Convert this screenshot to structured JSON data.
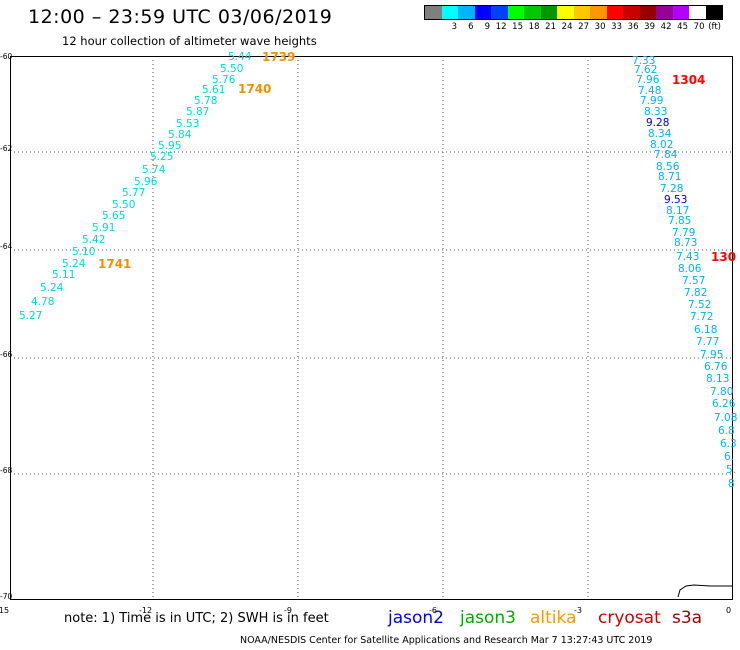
{
  "title": "12:00 – 23:59 UTC 03/06/2019",
  "subtitle": "12 hour collection of altimeter wave heights",
  "scale": {
    "colors": [
      "#7f7f7f",
      "#00ffff",
      "#00b4ff",
      "#0000ff",
      "#0041ff",
      "#00ff00",
      "#00c800",
      "#009600",
      "#ffff00",
      "#ffc800",
      "#ff9600",
      "#ff0000",
      "#c80000",
      "#960000",
      "#960096",
      "#b400ff",
      "#ffffff",
      "#000000"
    ],
    "labels": [
      "",
      "3",
      "6",
      "9",
      "12",
      "15",
      "18",
      "21",
      "24",
      "27",
      "30",
      "33",
      "36",
      "39",
      "42",
      "45",
      "70",
      "(ft)"
    ]
  },
  "map": {
    "lon_range": [
      -15,
      0
    ],
    "lat_range": [
      -70,
      -60
    ],
    "x_ticks": [
      "-15",
      "-12",
      "-9",
      "-6",
      "-3",
      "0"
    ],
    "y_ticks": [
      "-60",
      "-62",
      "-64",
      "-66",
      "-68",
      "-70"
    ],
    "gridlines": true
  },
  "track1": {
    "color": "#00d8d8",
    "values": [
      "5.44",
      "5.50",
      "5.76",
      "5.61",
      "5.78",
      "5.87",
      "5.53",
      "5.84",
      "5.95",
      "5.25",
      "5.74",
      "5.96",
      "5.77",
      "5.50",
      "5.65",
      "5.91",
      "5.42",
      "5.10",
      "5.24",
      "5.11",
      "5.24",
      "4.78",
      "5.27"
    ],
    "time_labels": [
      {
        "text": "1739",
        "color": "#f09000"
      },
      {
        "text": "1740",
        "color": "#f09000"
      },
      {
        "text": "1741",
        "color": "#f09000"
      }
    ]
  },
  "track2": {
    "color": "#00b4e8",
    "values": [
      {
        "v": "7.33",
        "c": "#00b4e8"
      },
      {
        "v": "7.62",
        "c": "#00b4e8"
      },
      {
        "v": "7.96",
        "c": "#00b4e8"
      },
      {
        "v": "7.48",
        "c": "#00b4e8"
      },
      {
        "v": "7.99",
        "c": "#00b4e8"
      },
      {
        "v": "8.33",
        "c": "#00b4e8"
      },
      {
        "v": "9.28",
        "c": "#0000cc"
      },
      {
        "v": "8.34",
        "c": "#00b4e8"
      },
      {
        "v": "8.02",
        "c": "#00b4e8"
      },
      {
        "v": "7.84",
        "c": "#00b4e8"
      },
      {
        "v": "8.56",
        "c": "#00b4e8"
      },
      {
        "v": "8.71",
        "c": "#00b4e8"
      },
      {
        "v": "7.28",
        "c": "#00b4e8"
      },
      {
        "v": "9.53",
        "c": "#0000cc"
      },
      {
        "v": "8.17",
        "c": "#00b4e8"
      },
      {
        "v": "7.85",
        "c": "#00b4e8"
      },
      {
        "v": "7.79",
        "c": "#00b4e8"
      },
      {
        "v": "8.73",
        "c": "#00b4e8"
      },
      {
        "v": "7.43",
        "c": "#00b4e8"
      },
      {
        "v": "8.06",
        "c": "#00b4e8"
      },
      {
        "v": "7.57",
        "c": "#00b4e8"
      },
      {
        "v": "7.82",
        "c": "#00b4e8"
      },
      {
        "v": "7.52",
        "c": "#00b4e8"
      },
      {
        "v": "7.72",
        "c": "#00b4e8"
      },
      {
        "v": "6.18",
        "c": "#00b4e8"
      },
      {
        "v": "7.77",
        "c": "#00b4e8"
      },
      {
        "v": "7.95",
        "c": "#00b4e8"
      },
      {
        "v": "6.76",
        "c": "#00b4e8"
      },
      {
        "v": "8.13",
        "c": "#00b4e8"
      },
      {
        "v": "7.80",
        "c": "#00b4e8"
      },
      {
        "v": "6.26",
        "c": "#00b4e8"
      },
      {
        "v": "7.08",
        "c": "#00b4e8"
      },
      {
        "v": "6.8",
        "c": "#00b4e8"
      },
      {
        "v": "6.3",
        "c": "#00b4e8"
      },
      {
        "v": "6.",
        "c": "#00b4e8"
      },
      {
        "v": "5.",
        "c": "#00b4e8"
      },
      {
        "v": "8",
        "c": "#00b4e8"
      }
    ],
    "time_labels": [
      {
        "text": "1304",
        "color": "#ff0000"
      },
      {
        "text": "130",
        "color": "#ff0000"
      }
    ]
  },
  "note": "note: 1) Time is in UTC; 2) SWH is in feet",
  "satellites": [
    {
      "name": "jason2",
      "color": "#0000ff"
    },
    {
      "name": "jason3",
      "color": "#00aa00"
    },
    {
      "name": "altika",
      "color": "#ff9900"
    },
    {
      "name": "cryosat",
      "color": "#cc0000"
    },
    {
      "name": "s3a",
      "color": "#990000"
    }
  ],
  "credit": "NOAA/NESDIS Center for Satellite Applications and Research   Mar  7 13:27:43 UTC 2019"
}
